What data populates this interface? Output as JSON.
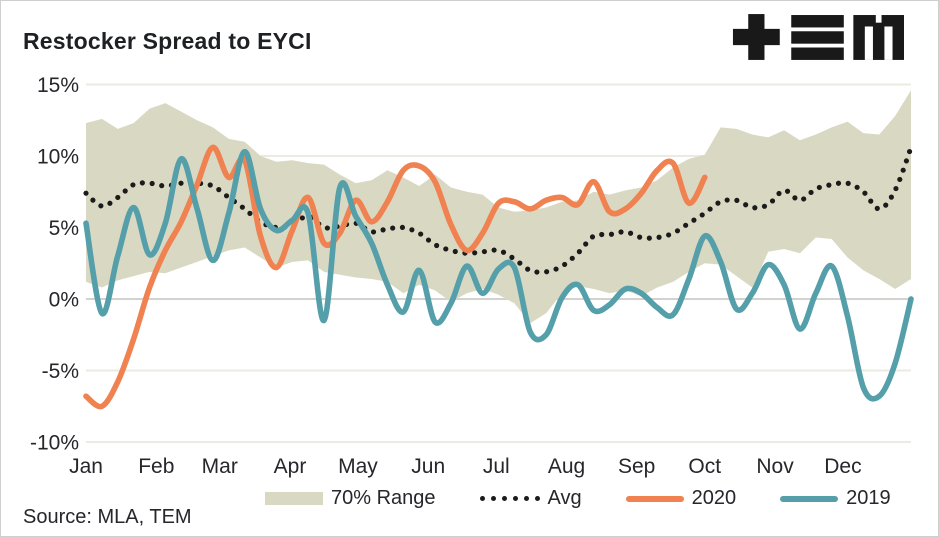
{
  "header": {
    "title": "Restocker Spread to EYCI",
    "logo_name": "TEM"
  },
  "source": {
    "label": "Source: MLA, TEM"
  },
  "legend": [
    {
      "label": "70% Range",
      "swatch": "band"
    },
    {
      "label": "Avg",
      "swatch": "dots"
    },
    {
      "label": "2020",
      "swatch": "orange-line"
    },
    {
      "label": "2019",
      "swatch": "teal-line"
    }
  ],
  "colors": {
    "band": "#d9d9c3",
    "avg_dots": "#1b1b1b",
    "series_2020": "#ef8250",
    "series_2019": "#549fa9",
    "gridline": "#ebebe2",
    "gridline_zero": "#d2d2cf",
    "text": "#26262b",
    "logo": "#191919"
  },
  "chart_data": {
    "type": "line",
    "title": "Restocker Spread to EYCI",
    "xlabel": "",
    "ylabel": "",
    "x_unit": "week-of-year",
    "ylim": [
      -10,
      15
    ],
    "grid": "horizontal",
    "legend_position": "bottom",
    "y_ticks": [
      15,
      10,
      5,
      0,
      -5,
      -10
    ],
    "y_tick_labels": [
      "15%",
      "10%",
      "5%",
      "0%",
      "-5%",
      "-10%"
    ],
    "x_tick_labels": [
      "Jan",
      "Feb",
      "Mar",
      "Apr",
      "May",
      "Jun",
      "Jul",
      "Aug",
      "Sep",
      "Oct",
      "Nov",
      "Dec"
    ],
    "month_start_weeks": [
      0,
      4.43,
      8.43,
      12.86,
      17.14,
      21.57,
      25.86,
      30.29,
      34.71,
      39.0,
      43.43,
      47.71
    ],
    "band": {
      "name": "70% Range",
      "top": [
        12.3,
        12.6,
        11.9,
        12.3,
        13.3,
        13.7,
        13.1,
        12.5,
        12.0,
        11.2,
        11.0,
        10.0,
        9.6,
        9.7,
        9.5,
        9.4,
        8.7,
        8.1,
        8.3,
        9.0,
        8.5,
        7.9,
        8.7,
        7.8,
        7.5,
        7.3,
        6.4,
        6.1,
        6.2,
        6.4,
        6.8,
        6.9,
        7.5,
        7.3,
        7.6,
        7.8,
        8.3,
        9.2,
        9.8,
        10.1,
        12.0,
        11.9,
        11.5,
        11.3,
        11.8,
        11.1,
        11.5,
        12.0,
        12.4,
        11.6,
        11.5,
        12.8,
        14.6
      ],
      "bottom": [
        1.2,
        0.8,
        1.3,
        1.6,
        1.9,
        1.8,
        2.2,
        2.6,
        3.0,
        3.4,
        3.6,
        2.9,
        2.2,
        2.6,
        2.7,
        1.9,
        1.7,
        1.5,
        1.4,
        1.2,
        0.4,
        1.0,
        0.6,
        -0.2,
        0.4,
        0.7,
        0.3,
        -0.3,
        -1.7,
        -1.0,
        0.4,
        0.9,
        0.7,
        0.4,
        0.6,
        0.2,
        0.8,
        1.2,
        1.9,
        2.5,
        2.4,
        1.6,
        0.8,
        3.3,
        3.5,
        3.2,
        4.3,
        4.2,
        2.9,
        2.0,
        1.4,
        0.7,
        1.4
      ]
    },
    "series": [
      {
        "name": "Avg",
        "style": "dotted",
        "color": "#1b1b1b",
        "values": [
          7.4,
          6.5,
          7.1,
          8.0,
          8.1,
          7.9,
          8.1,
          8.1,
          7.9,
          7.1,
          6.3,
          5.4,
          5.0,
          5.2,
          5.8,
          5.0,
          5.1,
          5.3,
          4.7,
          4.9,
          5.0,
          4.6,
          3.8,
          3.4,
          3.2,
          3.3,
          3.4,
          2.8,
          2.0,
          1.9,
          2.3,
          3.2,
          4.4,
          4.5,
          4.7,
          4.3,
          4.3,
          4.6,
          5.3,
          6.0,
          6.8,
          6.9,
          6.4,
          6.6,
          7.6,
          6.9,
          7.7,
          8.0,
          8.1,
          7.5,
          6.3,
          7.6,
          10.6
        ]
      },
      {
        "name": "2020",
        "style": "solid",
        "color": "#ef8250",
        "values": [
          -6.8,
          -7.5,
          -5.8,
          -2.8,
          0.8,
          3.4,
          5.4,
          8.0,
          10.6,
          8.5,
          9.7,
          4.4,
          2.2,
          4.8,
          7.1,
          3.9,
          4.6,
          6.9,
          5.4,
          6.8,
          9.0,
          9.3,
          8.2,
          5.2,
          3.4,
          4.6,
          6.7,
          6.8,
          6.3,
          6.9,
          7.1,
          6.6,
          8.2,
          6.1,
          6.3,
          7.4,
          9.0,
          9.5,
          6.7,
          8.5,
          null,
          null,
          null,
          null,
          null,
          null,
          null,
          null,
          null,
          null,
          null,
          null,
          null
        ]
      },
      {
        "name": "2019",
        "style": "solid",
        "color": "#549fa9",
        "values": [
          5.3,
          -1.0,
          3.0,
          6.4,
          3.1,
          5.3,
          9.8,
          6.3,
          2.7,
          6.0,
          10.3,
          6.3,
          4.8,
          5.5,
          6.0,
          -1.5,
          7.8,
          5.8,
          3.9,
          1.0,
          -0.9,
          2.0,
          -1.6,
          -0.3,
          2.3,
          0.4,
          2.1,
          2.2,
          -2.3,
          -2.5,
          0.1,
          1.0,
          -0.8,
          -0.4,
          0.7,
          0.4,
          -0.6,
          -1.1,
          1.4,
          4.4,
          2.6,
          -0.7,
          0.4,
          2.4,
          1.0,
          -2.1,
          0.4,
          2.3,
          -1.2,
          -6.2,
          -6.8,
          -4.5,
          0.0
        ]
      }
    ]
  }
}
